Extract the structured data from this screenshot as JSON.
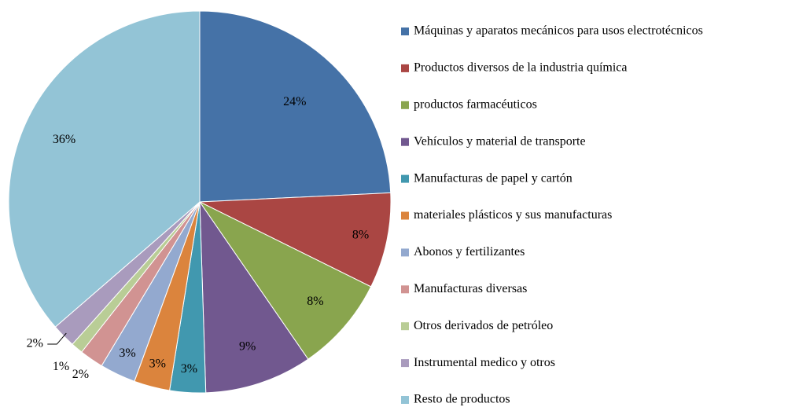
{
  "chart_data": {
    "type": "pie",
    "categories": [
      "Máquinas y aparatos mecánicos para usos electrotécnicos",
      "Productos diversos de la industria química",
      "productos farmacéuticos",
      "Vehículos y material de transporte",
      "Manufacturas de papel y cartón",
      "materiales plásticos y sus manufacturas",
      "Abonos y fertilizantes",
      "Manufacturas diversas",
      "Otros derivados de petróleo",
      "Instrumental medico y otros",
      "Resto de productos"
    ],
    "values": [
      24,
      8,
      8,
      9,
      3,
      3,
      3,
      2,
      1,
      2,
      36
    ],
    "value_labels": [
      "24%",
      "8%",
      "8%",
      "9%",
      "3%",
      "3%",
      "3%",
      "2%",
      "1%",
      "2%",
      "36%"
    ],
    "colors": [
      "#4572a7",
      "#aa4643",
      "#89a54e",
      "#71588f",
      "#4198af",
      "#db843d",
      "#93a9cf",
      "#d19392",
      "#b9cd96",
      "#a99bbd",
      "#93c4d6"
    ],
    "legend": "right"
  }
}
